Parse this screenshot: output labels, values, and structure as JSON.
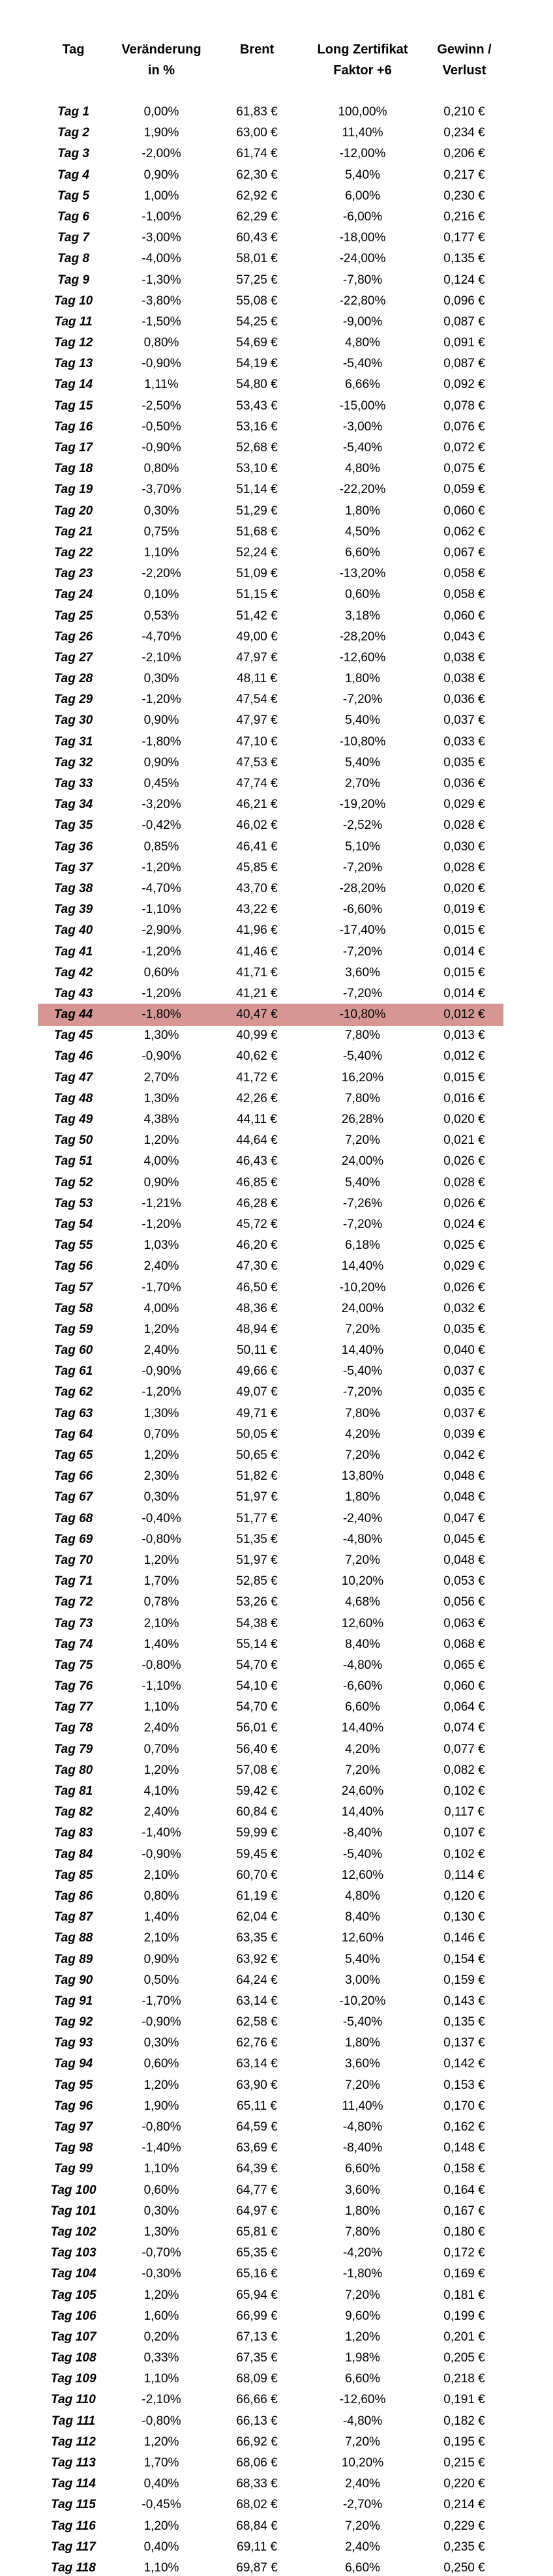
{
  "table": {
    "headers": [
      {
        "l1": "Tag",
        "l2": ""
      },
      {
        "l1": "Veränderung",
        "l2": "in %"
      },
      {
        "l1": "Brent",
        "l2": ""
      },
      {
        "l1": "Long Zertifikat",
        "l2": "Faktor +6"
      },
      {
        "l1": "Gewinn /",
        "l2": "Verlust"
      }
    ],
    "highlight": {
      "row_label": "Tag 44",
      "row_index": 43,
      "color": "#d69794"
    },
    "rows": [
      [
        "Tag 1",
        "0,00%",
        "61,83 €",
        "100,00%",
        "0,210 €"
      ],
      [
        "Tag 2",
        "1,90%",
        "63,00 €",
        "11,40%",
        "0,234 €"
      ],
      [
        "Tag 3",
        "-2,00%",
        "61,74 €",
        "-12,00%",
        "0,206 €"
      ],
      [
        "Tag 4",
        "0,90%",
        "62,30 €",
        "5,40%",
        "0,217 €"
      ],
      [
        "Tag 5",
        "1,00%",
        "62,92 €",
        "6,00%",
        "0,230 €"
      ],
      [
        "Tag 6",
        "-1,00%",
        "62,29 €",
        "-6,00%",
        "0,216 €"
      ],
      [
        "Tag 7",
        "-3,00%",
        "60,43 €",
        "-18,00%",
        "0,177 €"
      ],
      [
        "Tag 8",
        "-4,00%",
        "58,01 €",
        "-24,00%",
        "0,135 €"
      ],
      [
        "Tag 9",
        "-1,30%",
        "57,25 €",
        "-7,80%",
        "0,124 €"
      ],
      [
        "Tag 10",
        "-3,80%",
        "55,08 €",
        "-22,80%",
        "0,096 €"
      ],
      [
        "Tag 11",
        "-1,50%",
        "54,25 €",
        "-9,00%",
        "0,087 €"
      ],
      [
        "Tag 12",
        "0,80%",
        "54,69 €",
        "4,80%",
        "0,091 €"
      ],
      [
        "Tag 13",
        "-0,90%",
        "54,19 €",
        "-5,40%",
        "0,087 €"
      ],
      [
        "Tag 14",
        "1,11%",
        "54,80 €",
        "6,66%",
        "0,092 €"
      ],
      [
        "Tag 15",
        "-2,50%",
        "53,43 €",
        "-15,00%",
        "0,078 €"
      ],
      [
        "Tag 16",
        "-0,50%",
        "53,16 €",
        "-3,00%",
        "0,076 €"
      ],
      [
        "Tag 17",
        "-0,90%",
        "52,68 €",
        "-5,40%",
        "0,072 €"
      ],
      [
        "Tag 18",
        "0,80%",
        "53,10 €",
        "4,80%",
        "0,075 €"
      ],
      [
        "Tag 19",
        "-3,70%",
        "51,14 €",
        "-22,20%",
        "0,059 €"
      ],
      [
        "Tag 20",
        "0,30%",
        "51,29 €",
        "1,80%",
        "0,060 €"
      ],
      [
        "Tag 21",
        "0,75%",
        "51,68 €",
        "4,50%",
        "0,062 €"
      ],
      [
        "Tag 22",
        "1,10%",
        "52,24 €",
        "6,60%",
        "0,067 €"
      ],
      [
        "Tag 23",
        "-2,20%",
        "51,09 €",
        "-13,20%",
        "0,058 €"
      ],
      [
        "Tag 24",
        "0,10%",
        "51,15 €",
        "0,60%",
        "0,058 €"
      ],
      [
        "Tag 25",
        "0,53%",
        "51,42 €",
        "3,18%",
        "0,060 €"
      ],
      [
        "Tag 26",
        "-4,70%",
        "49,00 €",
        "-28,20%",
        "0,043 €"
      ],
      [
        "Tag 27",
        "-2,10%",
        "47,97 €",
        "-12,60%",
        "0,038 €"
      ],
      [
        "Tag 28",
        "0,30%",
        "48,11 €",
        "1,80%",
        "0,038 €"
      ],
      [
        "Tag 29",
        "-1,20%",
        "47,54 €",
        "-7,20%",
        "0,036 €"
      ],
      [
        "Tag 30",
        "0,90%",
        "47,97 €",
        "5,40%",
        "0,037 €"
      ],
      [
        "Tag 31",
        "-1,80%",
        "47,10 €",
        "-10,80%",
        "0,033 €"
      ],
      [
        "Tag 32",
        "0,90%",
        "47,53 €",
        "5,40%",
        "0,035 €"
      ],
      [
        "Tag 33",
        "0,45%",
        "47,74 €",
        "2,70%",
        "0,036 €"
      ],
      [
        "Tag 34",
        "-3,20%",
        "46,21 €",
        "-19,20%",
        "0,029 €"
      ],
      [
        "Tag 35",
        "-0,42%",
        "46,02 €",
        "-2,52%",
        "0,028 €"
      ],
      [
        "Tag 36",
        "0,85%",
        "46,41 €",
        "5,10%",
        "0,030 €"
      ],
      [
        "Tag 37",
        "-1,20%",
        "45,85 €",
        "-7,20%",
        "0,028 €"
      ],
      [
        "Tag 38",
        "-4,70%",
        "43,70 €",
        "-28,20%",
        "0,020 €"
      ],
      [
        "Tag 39",
        "-1,10%",
        "43,22 €",
        "-6,60%",
        "0,019 €"
      ],
      [
        "Tag 40",
        "-2,90%",
        "41,96 €",
        "-17,40%",
        "0,015 €"
      ],
      [
        "Tag 41",
        "-1,20%",
        "41,46 €",
        "-7,20%",
        "0,014 €"
      ],
      [
        "Tag 42",
        "0,60%",
        "41,71 €",
        "3,60%",
        "0,015 €"
      ],
      [
        "Tag 43",
        "-1,20%",
        "41,21 €",
        "-7,20%",
        "0,014 €"
      ],
      [
        "Tag 44",
        "-1,80%",
        "40,47 €",
        "-10,80%",
        "0,012 €"
      ],
      [
        "Tag 45",
        "1,30%",
        "40,99 €",
        "7,80%",
        "0,013 €"
      ],
      [
        "Tag 46",
        "-0,90%",
        "40,62 €",
        "-5,40%",
        "0,012 €"
      ],
      [
        "Tag 47",
        "2,70%",
        "41,72 €",
        "16,20%",
        "0,015 €"
      ],
      [
        "Tag 48",
        "1,30%",
        "42,26 €",
        "7,80%",
        "0,016 €"
      ],
      [
        "Tag 49",
        "4,38%",
        "44,11 €",
        "26,28%",
        "0,020 €"
      ],
      [
        "Tag 50",
        "1,20%",
        "44,64 €",
        "7,20%",
        "0,021 €"
      ],
      [
        "Tag 51",
        "4,00%",
        "46,43 €",
        "24,00%",
        "0,026 €"
      ],
      [
        "Tag 52",
        "0,90%",
        "46,85 €",
        "5,40%",
        "0,028 €"
      ],
      [
        "Tag 53",
        "-1,21%",
        "46,28 €",
        "-7,26%",
        "0,026 €"
      ],
      [
        "Tag 54",
        "-1,20%",
        "45,72 €",
        "-7,20%",
        "0,024 €"
      ],
      [
        "Tag 55",
        "1,03%",
        "46,20 €",
        "6,18%",
        "0,025 €"
      ],
      [
        "Tag 56",
        "2,40%",
        "47,30 €",
        "14,40%",
        "0,029 €"
      ],
      [
        "Tag 57",
        "-1,70%",
        "46,50 €",
        "-10,20%",
        "0,026 €"
      ],
      [
        "Tag 58",
        "4,00%",
        "48,36 €",
        "24,00%",
        "0,032 €"
      ],
      [
        "Tag 59",
        "1,20%",
        "48,94 €",
        "7,20%",
        "0,035 €"
      ],
      [
        "Tag 60",
        "2,40%",
        "50,11 €",
        "14,40%",
        "0,040 €"
      ],
      [
        "Tag 61",
        "-0,90%",
        "49,66 €",
        "-5,40%",
        "0,037 €"
      ],
      [
        "Tag 62",
        "-1,20%",
        "49,07 €",
        "-7,20%",
        "0,035 €"
      ],
      [
        "Tag 63",
        "1,30%",
        "49,71 €",
        "7,80%",
        "0,037 €"
      ],
      [
        "Tag 64",
        "0,70%",
        "50,05 €",
        "4,20%",
        "0,039 €"
      ],
      [
        "Tag 65",
        "1,20%",
        "50,65 €",
        "7,20%",
        "0,042 €"
      ],
      [
        "Tag 66",
        "2,30%",
        "51,82 €",
        "13,80%",
        "0,048 €"
      ],
      [
        "Tag 67",
        "0,30%",
        "51,97 €",
        "1,80%",
        "0,048 €"
      ],
      [
        "Tag 68",
        "-0,40%",
        "51,77 €",
        "-2,40%",
        "0,047 €"
      ],
      [
        "Tag 69",
        "-0,80%",
        "51,35 €",
        "-4,80%",
        "0,045 €"
      ],
      [
        "Tag 70",
        "1,20%",
        "51,97 €",
        "7,20%",
        "0,048 €"
      ],
      [
        "Tag 71",
        "1,70%",
        "52,85 €",
        "10,20%",
        "0,053 €"
      ],
      [
        "Tag 72",
        "0,78%",
        "53,26 €",
        "4,68%",
        "0,056 €"
      ],
      [
        "Tag 73",
        "2,10%",
        "54,38 €",
        "12,60%",
        "0,063 €"
      ],
      [
        "Tag 74",
        "1,40%",
        "55,14 €",
        "8,40%",
        "0,068 €"
      ],
      [
        "Tag 75",
        "-0,80%",
        "54,70 €",
        "-4,80%",
        "0,065 €"
      ],
      [
        "Tag 76",
        "-1,10%",
        "54,10 €",
        "-6,60%",
        "0,060 €"
      ],
      [
        "Tag 77",
        "1,10%",
        "54,70 €",
        "6,60%",
        "0,064 €"
      ],
      [
        "Tag 78",
        "2,40%",
        "56,01 €",
        "14,40%",
        "0,074 €"
      ],
      [
        "Tag 79",
        "0,70%",
        "56,40 €",
        "4,20%",
        "0,077 €"
      ],
      [
        "Tag 80",
        "1,20%",
        "57,08 €",
        "7,20%",
        "0,082 €"
      ],
      [
        "Tag 81",
        "4,10%",
        "59,42 €",
        "24,60%",
        "0,102 €"
      ],
      [
        "Tag 82",
        "2,40%",
        "60,84 €",
        "14,40%",
        "0,117 €"
      ],
      [
        "Tag 83",
        "-1,40%",
        "59,99 €",
        "-8,40%",
        "0,107 €"
      ],
      [
        "Tag 84",
        "-0,90%",
        "59,45 €",
        "-5,40%",
        "0,102 €"
      ],
      [
        "Tag 85",
        "2,10%",
        "60,70 €",
        "12,60%",
        "0,114 €"
      ],
      [
        "Tag 86",
        "0,80%",
        "61,19 €",
        "4,80%",
        "0,120 €"
      ],
      [
        "Tag 87",
        "1,40%",
        "62,04 €",
        "8,40%",
        "0,130 €"
      ],
      [
        "Tag 88",
        "2,10%",
        "63,35 €",
        "12,60%",
        "0,146 €"
      ],
      [
        "Tag 89",
        "0,90%",
        "63,92 €",
        "5,40%",
        "0,154 €"
      ],
      [
        "Tag 90",
        "0,50%",
        "64,24 €",
        "3,00%",
        "0,159 €"
      ],
      [
        "Tag 91",
        "-1,70%",
        "63,14 €",
        "-10,20%",
        "0,143 €"
      ],
      [
        "Tag 92",
        "-0,90%",
        "62,58 €",
        "-5,40%",
        "0,135 €"
      ],
      [
        "Tag 93",
        "0,30%",
        "62,76 €",
        "1,80%",
        "0,137 €"
      ],
      [
        "Tag 94",
        "0,60%",
        "63,14 €",
        "3,60%",
        "0,142 €"
      ],
      [
        "Tag 95",
        "1,20%",
        "63,90 €",
        "7,20%",
        "0,153 €"
      ],
      [
        "Tag 96",
        "1,90%",
        "65,11 €",
        "11,40%",
        "0,170 €"
      ],
      [
        "Tag 97",
        "-0,80%",
        "64,59 €",
        "-4,80%",
        "0,162 €"
      ],
      [
        "Tag 98",
        "-1,40%",
        "63,69 €",
        "-8,40%",
        "0,148 €"
      ],
      [
        "Tag 99",
        "1,10%",
        "64,39 €",
        "6,60%",
        "0,158 €"
      ],
      [
        "Tag 100",
        "0,60%",
        "64,77 €",
        "3,60%",
        "0,164 €"
      ],
      [
        "Tag 101",
        "0,30%",
        "64,97 €",
        "1,80%",
        "0,167 €"
      ],
      [
        "Tag 102",
        "1,30%",
        "65,81 €",
        "7,80%",
        "0,180 €"
      ],
      [
        "Tag 103",
        "-0,70%",
        "65,35 €",
        "-4,20%",
        "0,172 €"
      ],
      [
        "Tag 104",
        "-0,30%",
        "65,16 €",
        "-1,80%",
        "0,169 €"
      ],
      [
        "Tag 105",
        "1,20%",
        "65,94 €",
        "7,20%",
        "0,181 €"
      ],
      [
        "Tag 106",
        "1,60%",
        "66,99 €",
        "9,60%",
        "0,199 €"
      ],
      [
        "Tag 107",
        "0,20%",
        "67,13 €",
        "1,20%",
        "0,201 €"
      ],
      [
        "Tag 108",
        "0,33%",
        "67,35 €",
        "1,98%",
        "0,205 €"
      ],
      [
        "Tag 109",
        "1,10%",
        "68,09 €",
        "6,60%",
        "0,218 €"
      ],
      [
        "Tag 110",
        "-2,10%",
        "66,66 €",
        "-12,60%",
        "0,191 €"
      ],
      [
        "Tag 111",
        "-0,80%",
        "66,13 €",
        "-4,80%",
        "0,182 €"
      ],
      [
        "Tag 112",
        "1,20%",
        "66,92 €",
        "7,20%",
        "0,195 €"
      ],
      [
        "Tag 113",
        "1,70%",
        "68,06 €",
        "10,20%",
        "0,215 €"
      ],
      [
        "Tag 114",
        "0,40%",
        "68,33 €",
        "2,40%",
        "0,220 €"
      ],
      [
        "Tag 115",
        "-0,45%",
        "68,02 €",
        "-2,70%",
        "0,214 €"
      ],
      [
        "Tag 116",
        "1,20%",
        "68,84 €",
        "7,20%",
        "0,229 €"
      ],
      [
        "Tag 117",
        "0,40%",
        "69,11 €",
        "2,40%",
        "0,235 €"
      ],
      [
        "Tag 118",
        "1,10%",
        "69,87 €",
        "6,60%",
        "0,250 €"
      ]
    ]
  }
}
